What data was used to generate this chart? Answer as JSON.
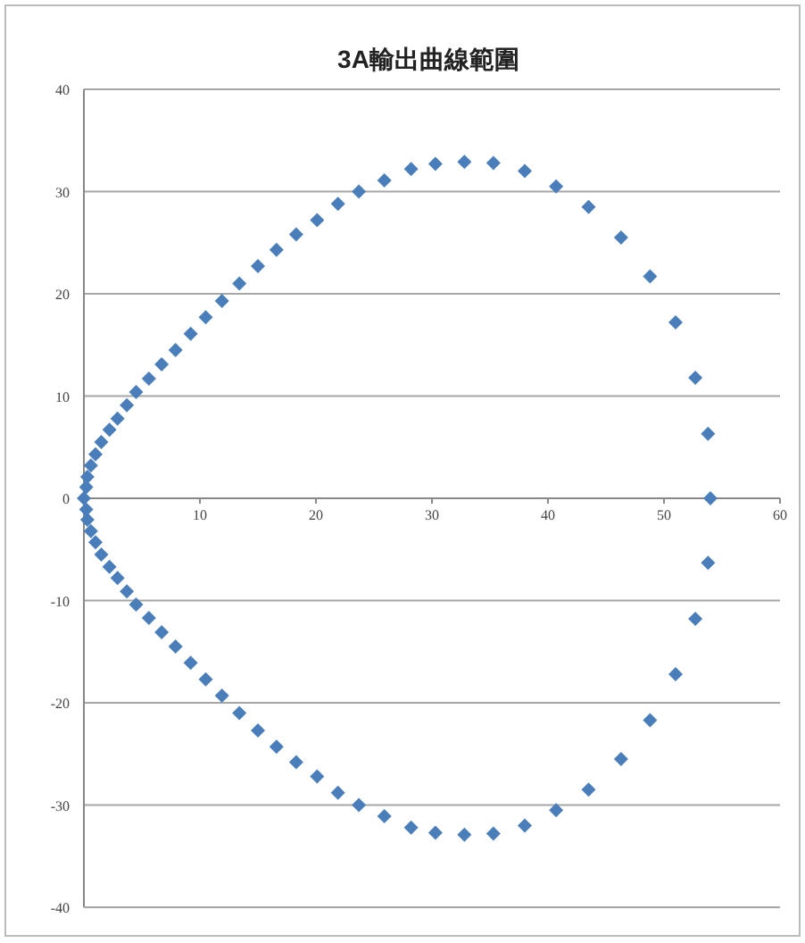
{
  "chart_data": {
    "type": "scatter",
    "title": "3A輸出曲線範圍",
    "marker": "diamond",
    "grid": "y",
    "xlim": [
      0,
      60
    ],
    "ylim": [
      -40,
      40
    ],
    "xticks": [
      10,
      20,
      30,
      40,
      50,
      60
    ],
    "yticks": [
      -40,
      -30,
      -20,
      -10,
      0,
      10,
      20,
      30,
      40
    ],
    "series": [
      {
        "color": "#4a7ebb",
        "x": [
          0,
          0.2,
          0.3,
          0.6,
          1.0,
          1.5,
          2.2,
          2.9,
          3.7,
          4.5,
          5.6,
          6.7,
          7.9,
          9.2,
          10.5,
          11.9,
          13.4,
          15.0,
          16.6,
          18.3,
          20.1,
          21.9,
          23.7,
          25.9,
          28.2,
          30.3,
          32.8,
          35.3,
          38.0,
          40.7,
          43.5,
          46.3,
          48.8,
          51.0,
          52.7,
          53.8,
          54.0,
          53.8,
          52.7,
          51.0,
          48.8,
          46.3,
          43.5,
          40.7,
          38.0,
          35.3,
          32.8,
          30.3,
          28.2,
          25.9,
          23.7,
          21.9,
          20.1,
          18.3,
          16.6,
          15.0,
          13.4,
          11.9,
          10.5,
          9.2,
          7.9,
          6.7,
          5.6,
          4.5,
          3.7,
          2.9,
          2.2,
          1.5,
          1.0,
          0.6,
          0.3,
          0.2
        ],
        "values": [
          0,
          1.1,
          2.1,
          3.2,
          4.3,
          5.5,
          6.7,
          7.8,
          9.1,
          10.4,
          11.7,
          13.1,
          14.5,
          16.1,
          17.7,
          19.3,
          21.0,
          22.7,
          24.3,
          25.8,
          27.2,
          28.8,
          30.0,
          31.1,
          32.2,
          32.7,
          32.9,
          32.8,
          32.0,
          30.5,
          28.5,
          25.5,
          21.7,
          17.2,
          11.8,
          6.3,
          0,
          -6.3,
          -11.8,
          -17.2,
          -21.7,
          -25.5,
          -28.5,
          -30.5,
          -32.0,
          -32.8,
          -32.9,
          -32.7,
          -32.2,
          -31.1,
          -30.0,
          -28.8,
          -27.2,
          -25.8,
          -24.3,
          -22.7,
          -21.0,
          -19.3,
          -17.7,
          -16.1,
          -14.5,
          -13.1,
          -11.7,
          -10.4,
          -9.1,
          -7.8,
          -6.7,
          -5.5,
          -4.3,
          -3.2,
          -2.1,
          -1.1
        ]
      }
    ]
  }
}
